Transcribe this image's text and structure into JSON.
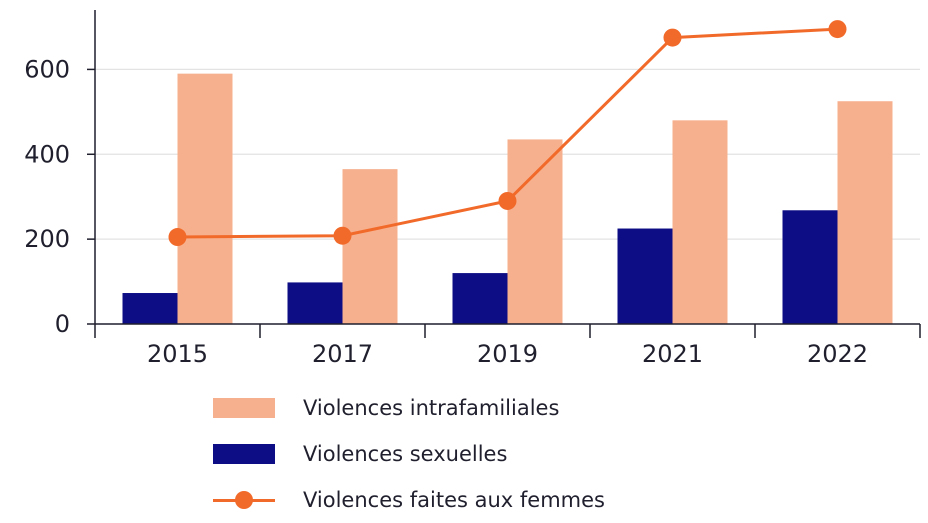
{
  "chart_data": {
    "type": "bar",
    "categories": [
      "2015",
      "2017",
      "2019",
      "2021",
      "2022"
    ],
    "ylim": [
      0,
      740
    ],
    "yticks": [
      "0",
      "200",
      "400",
      "600"
    ],
    "ytick_values": [
      0,
      200,
      400,
      600
    ],
    "grid": true,
    "legend_position": "bottom",
    "series": [
      {
        "name": "Violences sexuelles",
        "kind": "bar",
        "color": "#0d0d85",
        "values": [
          73,
          98,
          120,
          225,
          268
        ]
      },
      {
        "name": "Violences intrafamiliales",
        "kind": "bar",
        "color": "#f7b08e",
        "values": [
          590,
          365,
          435,
          480,
          525
        ]
      },
      {
        "name": "Violences faites aux femmes",
        "kind": "line",
        "color": "#f26a2a",
        "values": [
          205,
          208,
          290,
          675,
          695
        ]
      }
    ]
  },
  "legend": {
    "items": [
      {
        "label": "Violences intrafamiliales",
        "swatch": "bar",
        "color": "#f7b08e"
      },
      {
        "label": "Violences sexuelles",
        "swatch": "bar",
        "color": "#0d0d85"
      },
      {
        "label": "Violences faites aux femmes",
        "swatch": "line-dot",
        "color": "#f26a2a"
      }
    ]
  }
}
